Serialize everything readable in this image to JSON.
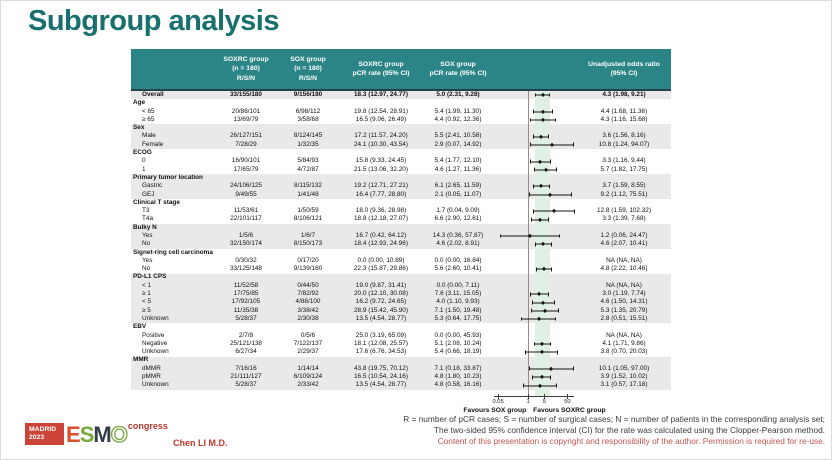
{
  "slide": {
    "title": "Subgroup analysis",
    "presenter": "Chen LI M.D.",
    "logo": {
      "venue": "MADRID",
      "year": "2023",
      "letters": [
        "E",
        "S",
        "M",
        "O"
      ],
      "suffix": "congress"
    },
    "footnotes": [
      "R = number of pCR cases; S = number of surgical cases; N = number of patients in the corresponding analysis set;",
      "The two-sided 95% confidence interval (CI) for the rate was calculated using the Clopper-Pearson method.",
      "Content of this presentation is copyright and responsibility of the author. Permission is required for re-use."
    ],
    "colors": {
      "header_teal": "#2b8486",
      "title_teal": "#17706d",
      "stripe_gray": "#e9e9e9",
      "band_green": "#dff0e4",
      "footnote_red": "#c4554e",
      "logo_red": "#cc4437"
    }
  },
  "table": {
    "headers": [
      [
        ""
      ],
      [
        "SOXRC group",
        "(n = 180)",
        "R/S/N"
      ],
      [
        "SOX group",
        "(n = 180)",
        "R/S/N"
      ],
      [
        "SOXRC group",
        "pCR rate (95% CI)"
      ],
      [
        "SOX group",
        "pCR rate (95% CI)"
      ],
      [
        ""
      ],
      [
        "Unadjusted odds ratio",
        "(95% CI)"
      ]
    ],
    "plot": {
      "scale": "log",
      "reference": 1,
      "band": [
        1.98,
        9.21
      ],
      "ticks": [
        "0.05",
        "1",
        "5",
        "50"
      ],
      "tick_values": [
        0.05,
        1,
        5,
        50
      ],
      "favours_left": "Favours SOX group",
      "favours_right": "Favours SOXRC group"
    },
    "sections": [
      {
        "shade": true,
        "rows": [
          {
            "label": "Overall",
            "bold": true,
            "rsn1": "33/155/180",
            "rsn2": "9/156/180",
            "rate1": "18.3 (12.97, 24.77)",
            "rate2": "5.0 (2.31, 9.28)",
            "or_text": "4.3 (1.98, 9.21)",
            "or": 4.3,
            "lo": 1.98,
            "hi": 9.21
          }
        ]
      },
      {
        "shade": false,
        "group": "Age",
        "rows": [
          {
            "label": "< 65",
            "rsn1": "20/86/101",
            "rsn2": "6/98/112",
            "rate1": "19.8 (12.54, 28.91)",
            "rate2": "5.4 (1.99, 11.30)",
            "or_text": "4.4 (1.68, 11.36)",
            "or": 4.4,
            "lo": 1.68,
            "hi": 11.36
          },
          {
            "label": "≥ 65",
            "rsn1": "13/69/79",
            "rsn2": "3/58/68",
            "rate1": "16.5 (9.06, 26.49)",
            "rate2": "4.4 (0.92, 12.36)",
            "or_text": "4.3 (1.16, 15.68)",
            "or": 4.3,
            "lo": 1.16,
            "hi": 15.68
          }
        ]
      },
      {
        "shade": true,
        "group": "Sex",
        "rows": [
          {
            "label": "Male",
            "rsn1": "26/127/151",
            "rsn2": "8/124/145",
            "rate1": "17.2 (11.57, 24.20)",
            "rate2": "5.5 (2.41, 10.58)",
            "or_text": "3.6 (1.56, 8.16)",
            "or": 3.6,
            "lo": 1.56,
            "hi": 8.16
          },
          {
            "label": "Female",
            "rsn1": "7/28/29",
            "rsn2": "1/32/35",
            "rate1": "24.1 (10.30, 43.54)",
            "rate2": "2.9 (0.07, 14.92)",
            "or_text": "10.8 (1.24, 94.07)",
            "or": 10.8,
            "lo": 1.24,
            "hi": 94.07
          }
        ]
      },
      {
        "shade": false,
        "group": "ECOG",
        "rows": [
          {
            "label": "0",
            "rsn1": "16/90/101",
            "rsn2": "5/84/93",
            "rate1": "15.8 (9.33, 24.45)",
            "rate2": "5.4 (1.77, 12.10)",
            "or_text": "3.3 (1.16, 9.44)",
            "or": 3.3,
            "lo": 1.16,
            "hi": 9.44
          },
          {
            "label": "1",
            "rsn1": "17/65/79",
            "rsn2": "4/72/87",
            "rate1": "21.5 (13.06, 32.20)",
            "rate2": "4.6 (1.27, 11.36)",
            "or_text": "5.7 (1.82, 17.75)",
            "or": 5.7,
            "lo": 1.82,
            "hi": 17.75
          }
        ]
      },
      {
        "shade": true,
        "group": "Primary tumor location",
        "rows": [
          {
            "label": "Gastric",
            "rsn1": "24/106/125",
            "rsn2": "8/115/132",
            "rate1": "19.2 (12.71, 27.21)",
            "rate2": "6.1 (2.65, 11.59)",
            "or_text": "3.7 (1.59, 8.55)",
            "or": 3.7,
            "lo": 1.59,
            "hi": 8.55
          },
          {
            "label": "GEJ",
            "rsn1": "9/49/55",
            "rsn2": "1/41/48",
            "rate1": "16.4 (7.77, 28.80)",
            "rate2": "2.1 (0.05, 11.07)",
            "or_text": "9.2 (1.12, 75.51)",
            "or": 9.2,
            "lo": 1.12,
            "hi": 75.51
          }
        ]
      },
      {
        "shade": false,
        "group": "Clinical T stage",
        "rows": [
          {
            "label": "T3",
            "rsn1": "11/53/61",
            "rsn2": "1/50/59",
            "rate1": "18.0 (9.36, 28.98)",
            "rate2": "1.7 (0.04, 9.09)",
            "or_text": "12.8 (1.59, 102.32)",
            "or": 12.8,
            "lo": 1.59,
            "hi": 102.32
          },
          {
            "label": "T4a",
            "rsn1": "22/101/117",
            "rsn2": "8/106/121",
            "rate1": "18.8 (12.18, 27.07)",
            "rate2": "6.6 (2.90, 12.61)",
            "or_text": "3.3 (1.39, 7.68)",
            "or": 3.3,
            "lo": 1.39,
            "hi": 7.68
          }
        ]
      },
      {
        "shade": true,
        "group": "Bulky N",
        "rows": [
          {
            "label": "Yes",
            "rsn1": "1/5/6",
            "rsn2": "1/6/7",
            "rate1": "16.7 (0.42, 64.12)",
            "rate2": "14.3 (0.36, 57.87)",
            "or_text": "1.2 (0.06, 24.47)",
            "or": 1.2,
            "lo": 0.06,
            "hi": 24.47
          },
          {
            "label": "No",
            "rsn1": "32/150/174",
            "rsn2": "8/150/173",
            "rate1": "18.4 (12.93, 24.96)",
            "rate2": "4.6 (2.02, 8.91)",
            "or_text": "4.6 (2.07, 10.41)",
            "or": 4.6,
            "lo": 2.07,
            "hi": 10.41
          }
        ]
      },
      {
        "shade": false,
        "group": "Signet-ring cell carcinoma",
        "rows": [
          {
            "label": "Yes",
            "rsn1": "0/30/32",
            "rsn2": "0/17/20",
            "rate1": "0.0 (0.00, 10.89)",
            "rate2": "0.0 (0.00, 16.84)",
            "or_text": "NA (NA, NA)",
            "or": null,
            "lo": null,
            "hi": null
          },
          {
            "label": "No",
            "rsn1": "33/125/148",
            "rsn2": "9/139/160",
            "rate1": "22.3 (15.87, 29.86)",
            "rate2": "5.6 (2.60, 10.41)",
            "or_text": "4.8 (2.22, 10.46)",
            "or": 4.8,
            "lo": 2.22,
            "hi": 10.46
          }
        ]
      },
      {
        "shade": true,
        "group": "PD-L1 CPS",
        "rows": [
          {
            "label": "< 1",
            "rsn1": "11/52/58",
            "rsn2": "0/44/50",
            "rate1": "19.0 (9.87, 31.41)",
            "rate2": "0.0 (0.00, 7.11)",
            "or_text": "NA (NA, NA)",
            "or": null,
            "lo": null,
            "hi": null
          },
          {
            "label": "≥ 1",
            "rsn1": "17/75/85",
            "rsn2": "7/82/92",
            "rate1": "20.0 (12.10, 30.08)",
            "rate2": "7.6 (3.11, 15.05)",
            "or_text": "3.0 (1.19, 7.74)",
            "or": 3.0,
            "lo": 1.19,
            "hi": 7.74
          },
          {
            "label": "< 5",
            "rsn1": "17/92/105",
            "rsn2": "4/88/100",
            "rate1": "16.2 (9.72, 24.65)",
            "rate2": "4.0 (1.10, 9.93)",
            "or_text": "4.6 (1.50, 14.31)",
            "or": 4.6,
            "lo": 1.5,
            "hi": 14.31
          },
          {
            "label": "≥ 5",
            "rsn1": "11/35/38",
            "rsn2": "3/38/42",
            "rate1": "28.9 (15.42, 45.90)",
            "rate2": "7.1 (1.50, 19.48)",
            "or_text": "5.3 (1.35, 20.79)",
            "or": 5.3,
            "lo": 1.35,
            "hi": 20.79
          },
          {
            "label": "Unknown",
            "rsn1": "5/28/37",
            "rsn2": "2/30/38",
            "rate1": "13.5 (4.54, 28.77)",
            "rate2": "5.3 (0.64, 17.75)",
            "or_text": "2.8 (0.51, 15.51)",
            "or": 2.8,
            "lo": 0.51,
            "hi": 15.51
          }
        ]
      },
      {
        "shade": false,
        "group": "EBV",
        "rows": [
          {
            "label": "Positive",
            "rsn1": "2/7/8",
            "rsn2": "0/5/6",
            "rate1": "25.0 (3.19, 65.09)",
            "rate2": "0.0 (0.00, 45.93)",
            "or_text": "NA (NA, NA)",
            "or": null,
            "lo": null,
            "hi": null
          },
          {
            "label": "Negative",
            "rsn1": "25/121/138",
            "rsn2": "7/122/137",
            "rate1": "18.1 (12.08, 25.57)",
            "rate2": "5.1 (2.08, 10.24)",
            "or_text": "4.1 (1.71, 9.86)",
            "or": 4.1,
            "lo": 1.71,
            "hi": 9.86
          },
          {
            "label": "Unknown",
            "rsn1": "6/27/34",
            "rsn2": "2/29/37",
            "rate1": "17.6 (6.76, 34.53)",
            "rate2": "5.4 (0.66, 18.19)",
            "or_text": "3.8 (0.70, 20.03)",
            "or": 3.8,
            "lo": 0.7,
            "hi": 20.03
          }
        ]
      },
      {
        "shade": true,
        "group": "MMR",
        "rows": [
          {
            "label": "dMMR",
            "rsn1": "7/16/16",
            "rsn2": "1/14/14",
            "rate1": "43.8 (19.75, 70.12)",
            "rate2": "7.1 (0.18, 33.87)",
            "or_text": "10.1 (1.05, 97.00)",
            "or": 10.1,
            "lo": 1.05,
            "hi": 97.0
          },
          {
            "label": "pMMR",
            "rsn1": "21/111/127",
            "rsn2": "6/109/124",
            "rate1": "16.5 (10.54, 24.16)",
            "rate2": "4.8 (1.80, 10.23)",
            "or_text": "3.9 (1.52, 10.02)",
            "or": 3.9,
            "lo": 1.52,
            "hi": 10.02
          },
          {
            "label": "Unknown",
            "rsn1": "5/28/37",
            "rsn2": "2/33/42",
            "rate1": "13.5 (4.54, 28.77)",
            "rate2": "4.8 (0.58, 16.16)",
            "or_text": "3.1 (0.57, 17.18)",
            "or": 3.1,
            "lo": 0.57,
            "hi": 17.18
          }
        ]
      }
    ]
  },
  "chart_data": {
    "type": "scatter",
    "variant": "forest-plot",
    "title": "Unadjusted odds ratio (95% CI)",
    "x_scale": "log",
    "x_ticks": [
      0.05,
      1,
      5,
      50
    ],
    "reference_line_x": 1,
    "shaded_band_x": [
      1.98,
      9.21
    ],
    "axis_label_left": "Favours SOX group",
    "axis_label_right": "Favours SOXRC group",
    "points": [
      {
        "label": "Overall",
        "or": 4.3,
        "ci": [
          1.98,
          9.21
        ]
      },
      {
        "label": "Age < 65",
        "or": 4.4,
        "ci": [
          1.68,
          11.36
        ]
      },
      {
        "label": "Age ≥ 65",
        "or": 4.3,
        "ci": [
          1.16,
          15.68
        ]
      },
      {
        "label": "Male",
        "or": 3.6,
        "ci": [
          1.56,
          8.16
        ]
      },
      {
        "label": "Female",
        "or": 10.8,
        "ci": [
          1.24,
          94.07
        ]
      },
      {
        "label": "ECOG 0",
        "or": 3.3,
        "ci": [
          1.16,
          9.44
        ]
      },
      {
        "label": "ECOG 1",
        "or": 5.7,
        "ci": [
          1.82,
          17.75
        ]
      },
      {
        "label": "Gastric",
        "or": 3.7,
        "ci": [
          1.59,
          8.55
        ]
      },
      {
        "label": "GEJ",
        "or": 9.2,
        "ci": [
          1.12,
          75.51
        ]
      },
      {
        "label": "T3",
        "or": 12.8,
        "ci": [
          1.59,
          102.32
        ]
      },
      {
        "label": "T4a",
        "or": 3.3,
        "ci": [
          1.39,
          7.68
        ]
      },
      {
        "label": "Bulky N Yes",
        "or": 1.2,
        "ci": [
          0.06,
          24.47
        ]
      },
      {
        "label": "Bulky N No",
        "or": 4.6,
        "ci": [
          2.07,
          10.41
        ]
      },
      {
        "label": "Signet-ring Yes",
        "or": null,
        "ci": null
      },
      {
        "label": "Signet-ring No",
        "or": 4.8,
        "ci": [
          2.22,
          10.46
        ]
      },
      {
        "label": "PD-L1 CPS < 1",
        "or": null,
        "ci": null
      },
      {
        "label": "PD-L1 CPS ≥ 1",
        "or": 3.0,
        "ci": [
          1.19,
          7.74
        ]
      },
      {
        "label": "PD-L1 CPS < 5",
        "or": 4.6,
        "ci": [
          1.5,
          14.31
        ]
      },
      {
        "label": "PD-L1 CPS ≥ 5",
        "or": 5.3,
        "ci": [
          1.35,
          20.79
        ]
      },
      {
        "label": "PD-L1 CPS Unknown",
        "or": 2.8,
        "ci": [
          0.51,
          15.51
        ]
      },
      {
        "label": "EBV Positive",
        "or": null,
        "ci": null
      },
      {
        "label": "EBV Negative",
        "or": 4.1,
        "ci": [
          1.71,
          9.86
        ]
      },
      {
        "label": "EBV Unknown",
        "or": 3.8,
        "ci": [
          0.7,
          20.03
        ]
      },
      {
        "label": "dMMR",
        "or": 10.1,
        "ci": [
          1.05,
          97.0
        ]
      },
      {
        "label": "pMMR",
        "or": 3.9,
        "ci": [
          1.52,
          10.02
        ]
      },
      {
        "label": "MMR Unknown",
        "or": 3.1,
        "ci": [
          0.57,
          17.18
        ]
      }
    ]
  }
}
